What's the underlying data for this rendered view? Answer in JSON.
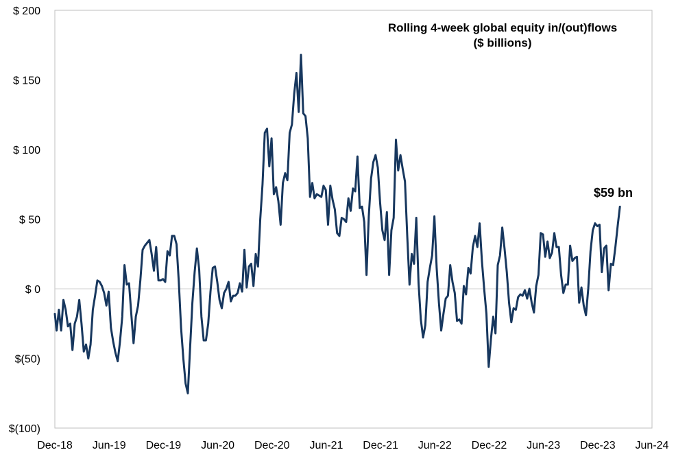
{
  "chart_data": {
    "type": "line",
    "title": "Rolling 4-week global equity in/(out)flows",
    "subtitle": "($ billions)",
    "xlabel": "",
    "ylabel": "",
    "ylim": [
      -100,
      200
    ],
    "y_ticks": [
      200,
      150,
      100,
      50,
      0,
      -50,
      -100
    ],
    "y_tick_labels": [
      "$ 200",
      "$ 150",
      "$ 100",
      "$ 50",
      "$ 0",
      "$(50)",
      "$(100)"
    ],
    "x_tick_labels": [
      "Dec-18",
      "Jun-19",
      "Dec-19",
      "Jun-20",
      "Dec-20",
      "Jun-21",
      "Dec-21",
      "Jun-22",
      "Dec-22",
      "Jun-23",
      "Dec-23",
      "Jun-24"
    ],
    "x_range_months": [
      0,
      66
    ],
    "grid": "zero-line only",
    "annotation": {
      "text": "$59 bn",
      "month": 59.9,
      "value": 59
    },
    "series": [
      {
        "name": "Rolling 4-week global equity in/(out)flows",
        "color": "#17375e",
        "points": [
          [
            0.0,
            -18
          ],
          [
            0.2,
            -30
          ],
          [
            0.45,
            -15
          ],
          [
            0.7,
            -30
          ],
          [
            0.95,
            -8
          ],
          [
            1.2,
            -15
          ],
          [
            1.45,
            -27
          ],
          [
            1.7,
            -25
          ],
          [
            1.95,
            -44
          ],
          [
            2.2,
            -25
          ],
          [
            2.45,
            -20
          ],
          [
            2.7,
            -8
          ],
          [
            2.95,
            -25
          ],
          [
            3.2,
            -45
          ],
          [
            3.45,
            -40
          ],
          [
            3.7,
            -50
          ],
          [
            3.95,
            -40
          ],
          [
            4.2,
            -15
          ],
          [
            4.45,
            -5
          ],
          [
            4.7,
            6
          ],
          [
            4.95,
            5
          ],
          [
            5.2,
            2
          ],
          [
            5.45,
            -3
          ],
          [
            5.7,
            -12
          ],
          [
            5.95,
            -2
          ],
          [
            6.2,
            -28
          ],
          [
            6.45,
            -38
          ],
          [
            6.7,
            -46
          ],
          [
            6.95,
            -52
          ],
          [
            7.2,
            -38
          ],
          [
            7.45,
            -20
          ],
          [
            7.7,
            17
          ],
          [
            7.95,
            3
          ],
          [
            8.2,
            4
          ],
          [
            8.45,
            -18
          ],
          [
            8.7,
            -39
          ],
          [
            8.95,
            -20
          ],
          [
            9.2,
            -12
          ],
          [
            9.45,
            6
          ],
          [
            9.7,
            28
          ],
          [
            9.95,
            31
          ],
          [
            10.2,
            33
          ],
          [
            10.45,
            35
          ],
          [
            10.7,
            25
          ],
          [
            10.95,
            13
          ],
          [
            11.2,
            30
          ],
          [
            11.45,
            6
          ],
          [
            11.7,
            6
          ],
          [
            11.95,
            7
          ],
          [
            12.2,
            5
          ],
          [
            12.45,
            27
          ],
          [
            12.7,
            24
          ],
          [
            12.95,
            38
          ],
          [
            13.2,
            38
          ],
          [
            13.45,
            32
          ],
          [
            13.7,
            5
          ],
          [
            13.95,
            -28
          ],
          [
            14.2,
            -50
          ],
          [
            14.45,
            -68
          ],
          [
            14.7,
            -75
          ],
          [
            14.95,
            -42
          ],
          [
            15.2,
            -10
          ],
          [
            15.45,
            12
          ],
          [
            15.7,
            29
          ],
          [
            15.95,
            14
          ],
          [
            16.2,
            -20
          ],
          [
            16.45,
            -37
          ],
          [
            16.7,
            -37
          ],
          [
            16.95,
            -25
          ],
          [
            17.2,
            -2
          ],
          [
            17.45,
            15
          ],
          [
            17.7,
            16
          ],
          [
            17.95,
            5
          ],
          [
            18.2,
            -8
          ],
          [
            18.45,
            -14
          ],
          [
            18.7,
            -3
          ],
          [
            18.95,
            0
          ],
          [
            19.2,
            5
          ],
          [
            19.45,
            -9
          ],
          [
            19.7,
            -5
          ],
          [
            19.95,
            -5
          ],
          [
            20.2,
            -3
          ],
          [
            20.45,
            4
          ],
          [
            20.7,
            -2
          ],
          [
            20.95,
            28
          ],
          [
            21.2,
            1
          ],
          [
            21.45,
            16
          ],
          [
            21.7,
            18
          ],
          [
            21.95,
            2
          ],
          [
            22.2,
            25
          ],
          [
            22.45,
            16
          ],
          [
            22.7,
            50
          ],
          [
            22.95,
            75
          ],
          [
            23.2,
            112
          ],
          [
            23.45,
            115
          ],
          [
            23.7,
            88
          ],
          [
            23.95,
            108
          ],
          [
            24.2,
            68
          ],
          [
            24.45,
            73
          ],
          [
            24.7,
            63
          ],
          [
            24.95,
            46
          ],
          [
            25.2,
            76
          ],
          [
            25.45,
            83
          ],
          [
            25.7,
            78
          ],
          [
            25.95,
            112
          ],
          [
            26.2,
            118
          ],
          [
            26.45,
            140
          ],
          [
            26.7,
            155
          ],
          [
            26.95,
            127
          ],
          [
            27.2,
            168
          ],
          [
            27.45,
            126
          ],
          [
            27.7,
            124
          ],
          [
            27.95,
            108
          ],
          [
            28.2,
            66
          ],
          [
            28.45,
            76
          ],
          [
            28.7,
            65
          ],
          [
            28.95,
            68
          ],
          [
            29.2,
            67
          ],
          [
            29.45,
            66
          ],
          [
            29.7,
            74
          ],
          [
            29.95,
            71
          ],
          [
            30.2,
            46
          ],
          [
            30.45,
            74
          ],
          [
            30.7,
            64
          ],
          [
            30.95,
            57
          ],
          [
            31.2,
            40
          ],
          [
            31.45,
            38
          ],
          [
            31.7,
            51
          ],
          [
            31.95,
            50
          ],
          [
            32.2,
            48
          ],
          [
            32.45,
            65
          ],
          [
            32.7,
            56
          ],
          [
            32.95,
            72
          ],
          [
            33.2,
            70
          ],
          [
            33.45,
            95
          ],
          [
            33.7,
            58
          ],
          [
            33.95,
            59
          ],
          [
            34.2,
            48
          ],
          [
            34.45,
            10
          ],
          [
            34.7,
            52
          ],
          [
            34.95,
            79
          ],
          [
            35.2,
            91
          ],
          [
            35.45,
            96
          ],
          [
            35.7,
            87
          ],
          [
            35.95,
            62
          ],
          [
            36.2,
            42
          ],
          [
            36.45,
            35
          ],
          [
            36.7,
            55
          ],
          [
            36.95,
            10
          ],
          [
            37.2,
            42
          ],
          [
            37.45,
            51
          ],
          [
            37.7,
            107
          ],
          [
            37.95,
            85
          ],
          [
            38.2,
            96
          ],
          [
            38.45,
            86
          ],
          [
            38.7,
            77
          ],
          [
            38.95,
            38
          ],
          [
            39.2,
            3
          ],
          [
            39.45,
            25
          ],
          [
            39.7,
            18
          ],
          [
            39.95,
            51
          ],
          [
            40.2,
            4
          ],
          [
            40.45,
            -22
          ],
          [
            40.7,
            -35
          ],
          [
            40.95,
            -26
          ],
          [
            41.2,
            5
          ],
          [
            41.45,
            15
          ],
          [
            41.7,
            24
          ],
          [
            41.95,
            52
          ],
          [
            42.2,
            15
          ],
          [
            42.45,
            -10
          ],
          [
            42.7,
            -30
          ],
          [
            42.95,
            -18
          ],
          [
            43.2,
            -7
          ],
          [
            43.45,
            -5
          ],
          [
            43.7,
            17
          ],
          [
            43.95,
            5
          ],
          [
            44.2,
            -3
          ],
          [
            44.45,
            -23
          ],
          [
            44.7,
            -22
          ],
          [
            44.95,
            -25
          ],
          [
            45.2,
            2
          ],
          [
            45.45,
            -4
          ],
          [
            45.7,
            15
          ],
          [
            45.95,
            11
          ],
          [
            46.2,
            30
          ],
          [
            46.45,
            38
          ],
          [
            46.7,
            30
          ],
          [
            46.95,
            47
          ],
          [
            47.2,
            20
          ],
          [
            47.45,
            0
          ],
          [
            47.7,
            -18
          ],
          [
            47.95,
            -56
          ],
          [
            48.2,
            -36
          ],
          [
            48.45,
            -20
          ],
          [
            48.7,
            -32
          ],
          [
            48.95,
            17
          ],
          [
            49.2,
            24
          ],
          [
            49.45,
            44
          ],
          [
            49.7,
            29
          ],
          [
            49.95,
            12
          ],
          [
            50.2,
            -10
          ],
          [
            50.45,
            -24
          ],
          [
            50.7,
            -14
          ],
          [
            50.95,
            -15
          ],
          [
            51.2,
            -6
          ],
          [
            51.45,
            -4
          ],
          [
            51.7,
            -5
          ],
          [
            51.95,
            -1
          ],
          [
            52.2,
            -7
          ],
          [
            52.45,
            0
          ],
          [
            52.7,
            -10
          ],
          [
            52.95,
            -17
          ],
          [
            53.2,
            2
          ],
          [
            53.45,
            10
          ],
          [
            53.7,
            40
          ],
          [
            53.95,
            39
          ],
          [
            54.2,
            23
          ],
          [
            54.45,
            34
          ],
          [
            54.7,
            22
          ],
          [
            54.95,
            26
          ],
          [
            55.2,
            40
          ],
          [
            55.45,
            30
          ],
          [
            55.7,
            30
          ],
          [
            55.95,
            10
          ],
          [
            56.2,
            -3
          ],
          [
            56.45,
            3
          ],
          [
            56.7,
            3
          ],
          [
            56.95,
            31
          ],
          [
            57.2,
            20
          ],
          [
            57.45,
            22
          ],
          [
            57.7,
            23
          ],
          [
            57.95,
            -10
          ],
          [
            58.2,
            1
          ],
          [
            58.45,
            -12
          ],
          [
            58.7,
            -19
          ],
          [
            58.95,
            0
          ],
          [
            59.2,
            27
          ],
          [
            59.45,
            42
          ],
          [
            59.7,
            47
          ],
          [
            59.95,
            45
          ],
          [
            60.2,
            46
          ],
          [
            60.45,
            12
          ],
          [
            60.7,
            29
          ],
          [
            60.95,
            31
          ],
          [
            61.2,
            -1
          ],
          [
            61.45,
            18
          ],
          [
            61.7,
            17
          ],
          [
            61.95,
            30
          ],
          [
            62.2,
            45
          ],
          [
            62.45,
            59
          ]
        ]
      }
    ]
  }
}
